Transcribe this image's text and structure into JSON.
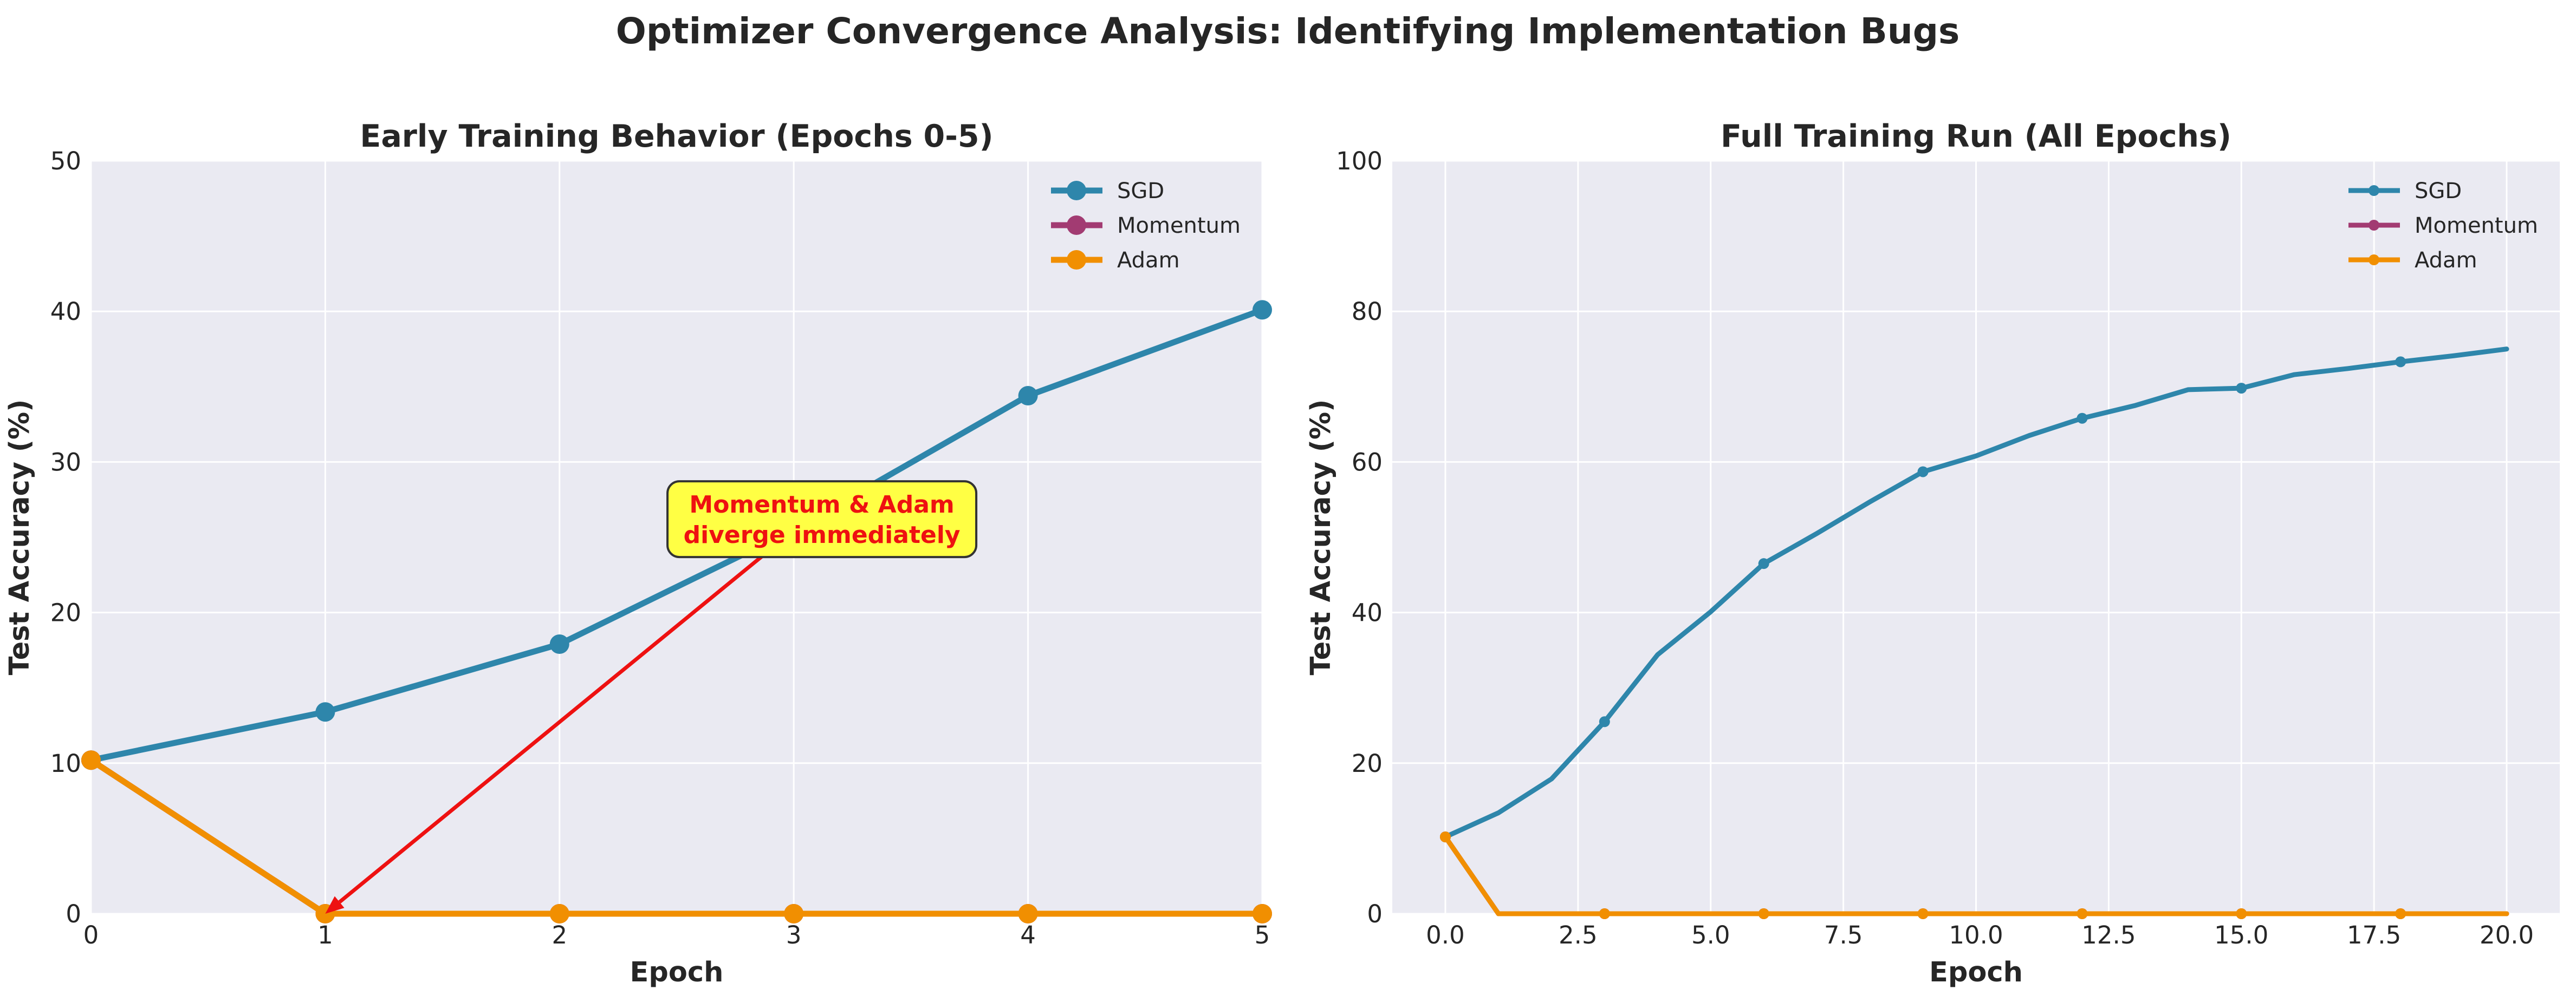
{
  "figure": {
    "suptitle": "Optimizer Convergence Analysis: Identifying Implementation Bugs",
    "background": "#ffffff",
    "axes_facecolor": "#eaeaf2",
    "grid_color": "#ffffff"
  },
  "chart_data": [
    {
      "type": "line",
      "title": "Early Training Behavior (Epochs 0-5)",
      "xlabel": "Epoch",
      "ylabel": "Test Accuracy (%)",
      "xlim": [
        0,
        5
      ],
      "ylim": [
        0,
        50
      ],
      "xticks": [
        "0",
        "1",
        "2",
        "3",
        "4",
        "5"
      ],
      "yticks": [
        "0",
        "10",
        "20",
        "30",
        "40",
        "50"
      ],
      "grid": true,
      "legend": "top-right",
      "series": [
        {
          "name": "SGD",
          "color": "#2e86ab",
          "x": [
            0,
            1,
            2,
            3,
            4,
            5
          ],
          "y": [
            10.2,
            13.4,
            17.9,
            25.5,
            34.4,
            40.1
          ]
        },
        {
          "name": "Momentum",
          "color": "#a23b72",
          "x": [
            0,
            1,
            2,
            3,
            4,
            5
          ],
          "y": [
            10.2,
            0,
            0,
            0,
            0,
            0
          ]
        },
        {
          "name": "Adam",
          "color": "#f18f01",
          "x": [
            0,
            1,
            2,
            3,
            4,
            5
          ],
          "y": [
            10.2,
            0,
            0,
            0,
            0,
            0
          ]
        }
      ],
      "annotation": {
        "line1": "Momentum & Adam",
        "line2": "diverge immediately",
        "box_color": "#ffff44",
        "text_color": "#ee1111",
        "arrow_color": "#ee1111",
        "text_xy": [
          3.12,
          26.2
        ],
        "target_xy": [
          1,
          0
        ]
      }
    },
    {
      "type": "line",
      "title": "Full Training Run (All Epochs)",
      "xlabel": "Epoch",
      "ylabel": "Test Accuracy (%)",
      "xlim": [
        -1,
        21
      ],
      "ylim": [
        0,
        100
      ],
      "xticks": [
        "0.0",
        "2.5",
        "5.0",
        "7.5",
        "10.0",
        "12.5",
        "15.0",
        "17.5",
        "20.0"
      ],
      "yticks": [
        "0",
        "20",
        "40",
        "60",
        "80",
        "100"
      ],
      "grid": true,
      "legend": "top-right",
      "series": [
        {
          "name": "SGD",
          "color": "#2e86ab",
          "x": [
            0,
            1,
            2,
            3,
            4,
            5,
            6,
            7,
            8,
            9,
            10,
            11,
            12,
            13,
            14,
            15,
            16,
            17,
            18,
            19,
            20
          ],
          "y": [
            10.2,
            13.4,
            17.9,
            25.5,
            34.4,
            40.1,
            46.5,
            50.5,
            54.7,
            58.7,
            60.8,
            63.5,
            65.8,
            67.5,
            69.6,
            69.8,
            71.6,
            72.4,
            73.3,
            74.1,
            75.0
          ]
        },
        {
          "name": "Momentum",
          "color": "#a23b72",
          "x": [
            0,
            1,
            2,
            3,
            4,
            5,
            6,
            7,
            8,
            9,
            10,
            11,
            12,
            13,
            14,
            15,
            16,
            17,
            18,
            19,
            20
          ],
          "y": [
            10.2,
            0,
            0,
            0,
            0,
            0,
            0,
            0,
            0,
            0,
            0,
            0,
            0,
            0,
            0,
            0,
            0,
            0,
            0,
            0,
            0
          ]
        },
        {
          "name": "Adam",
          "color": "#f18f01",
          "x": [
            0,
            1,
            2,
            3,
            4,
            5,
            6,
            7,
            8,
            9,
            10,
            11,
            12,
            13,
            14,
            15,
            16,
            17,
            18,
            19,
            20
          ],
          "y": [
            10.2,
            0,
            0,
            0,
            0,
            0,
            0,
            0,
            0,
            0,
            0,
            0,
            0,
            0,
            0,
            0,
            0,
            0,
            0,
            0,
            0
          ]
        }
      ]
    }
  ]
}
